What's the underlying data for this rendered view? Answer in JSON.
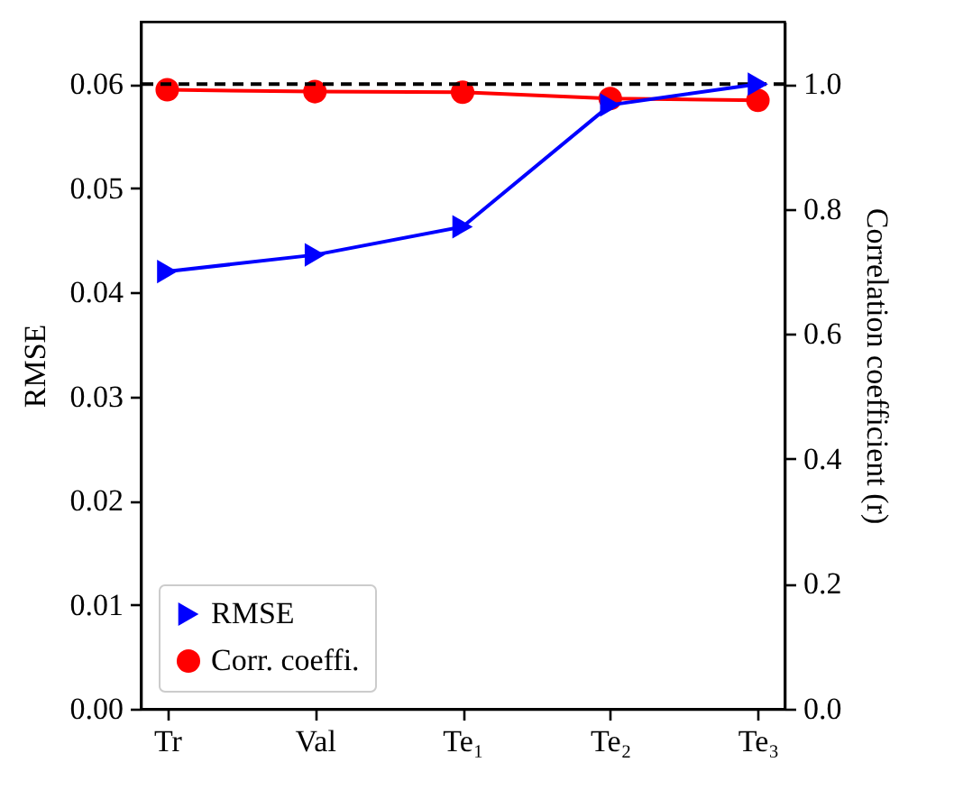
{
  "chart_data": {
    "type": "line",
    "categories": [
      "Tr",
      "Val",
      "Te₁",
      "Te₂",
      "Te₃"
    ],
    "ylabel": "RMSE",
    "y2label": "Correlation coefficient (r)",
    "ylim": [
      0,
      0.066
    ],
    "yticks": [
      {
        "value": 0,
        "label": "0.00"
      },
      0.01,
      0.02,
      0.03,
      0.04,
      0.05,
      0.06
    ],
    "y2lim": [
      0,
      1.1
    ],
    "y2ticks": [
      {
        "value": 0,
        "label": "0.0"
      },
      0.2,
      0.4,
      0.6,
      0.8,
      {
        "value": 1,
        "label": "1.0"
      }
    ],
    "series": [
      {
        "name": "RMSE",
        "color": "#0000ff",
        "marker": "triangle",
        "values": [
          0.042,
          0.0436,
          0.0463,
          0.058,
          0.06
        ]
      },
      {
        "name": "Corr. coeffi.",
        "color": "#ff0000",
        "marker": "circle",
        "axis": "y2",
        "values": [
          0.991,
          0.988,
          0.987,
          0.977,
          0.974
        ]
      }
    ],
    "ref_lines": [
      {
        "axis": "y2",
        "value": 1.0,
        "color": "#000000",
        "line_style": "dashed"
      }
    ],
    "legend": "bottom left",
    "grid": false
  }
}
